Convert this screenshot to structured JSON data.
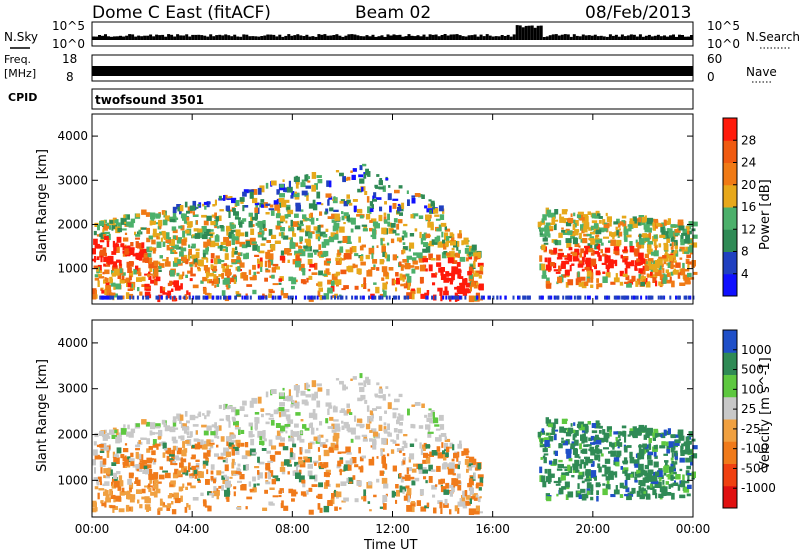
{
  "header": {
    "station": "Dome C East (fitACF)",
    "beam": "Beam 02",
    "date": "08/Feb/2013"
  },
  "sky_panel": {
    "left_label": "N.Sky",
    "right_label": "N.Search",
    "ticks": [
      "10^5",
      "10^0"
    ],
    "right_ticks": [
      "10^5",
      "10^0"
    ]
  },
  "freq_panel": {
    "left_label_1": "Freq.",
    "left_label_2": "[MHz]",
    "ticks": [
      "18",
      "8"
    ],
    "right_ticks": [
      "60",
      "0"
    ],
    "right_label": "Nave",
    "cpid_label": "CPID",
    "cpid_value": "twofsound 3501"
  },
  "colors": {
    "power": [
      "#1010ff",
      "#2040c0",
      "#2f8a55",
      "#4cb06b",
      "#e7a81b",
      "#f07a15",
      "#f05a10",
      "#ff1a0a"
    ],
    "velocity": [
      "#e01010",
      "#f04010",
      "#f07a1a",
      "#f0a040",
      "#c8c8c8",
      "#5ec840",
      "#2f8a55",
      "#1f4fc8"
    ]
  },
  "chart_data": [
    {
      "type": "heatmap",
      "title": "",
      "xlabel": "",
      "ylabel": "Slant Range [km]",
      "x_ticks": [
        "00:00",
        "04:00",
        "08:00",
        "12:00",
        "16:00",
        "20:00",
        "00:00"
      ],
      "y_ticks": [
        "1000",
        "2000",
        "3000",
        "4000"
      ],
      "x_range_hours": [
        0,
        24
      ],
      "y_range_km": [
        200,
        4500
      ],
      "colorbar_label": "Power [dB]",
      "colorbar_ticks": [
        "28",
        "24",
        "20",
        "16",
        "12",
        "8",
        "4"
      ],
      "colorbar_range": [
        0,
        32
      ]
    },
    {
      "type": "heatmap",
      "title": "",
      "xlabel": "Time UT",
      "ylabel": "Slant Range [km]",
      "x_ticks": [
        "00:00",
        "04:00",
        "08:00",
        "12:00",
        "16:00",
        "20:00",
        "00:00"
      ],
      "y_ticks": [
        "1000",
        "2000",
        "3000",
        "4000"
      ],
      "x_range_hours": [
        0,
        24
      ],
      "y_range_km": [
        200,
        4500
      ],
      "colorbar_label": "Velocity [m s^-1]",
      "colorbar_ticks": [
        "1000",
        "500",
        "100",
        "25",
        "-25",
        "-100",
        "-500",
        "-1000"
      ]
    }
  ]
}
